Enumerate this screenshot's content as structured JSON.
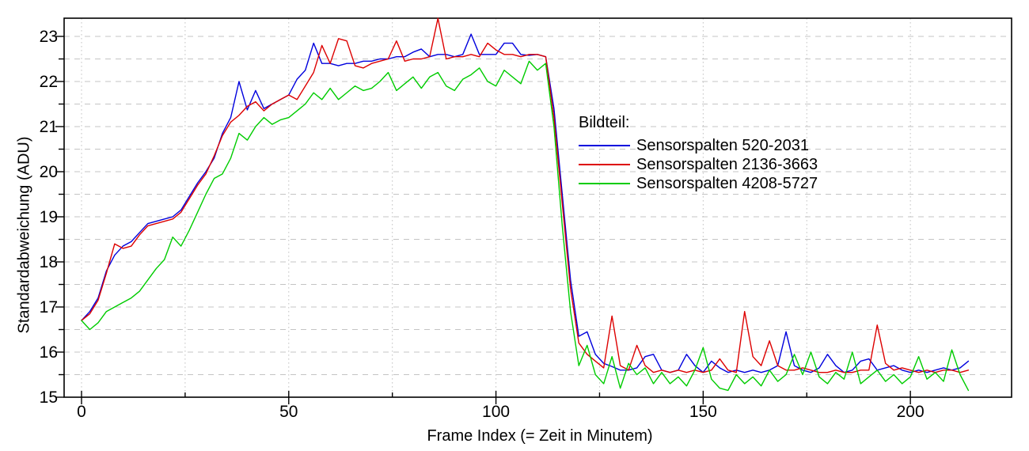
{
  "chart_data": {
    "type": "line",
    "title": "",
    "xlabel": "Frame Index (= Zeit in Minutem)",
    "ylabel": "Standardabweichung (ADU)",
    "legend": {
      "title": "Bildteil:",
      "position": "inside-right"
    },
    "grid": {
      "visible": true,
      "color": "#c4c4c4",
      "h_style": "dashed",
      "v_style": "dotted"
    },
    "x_axis": {
      "ticks_major": [
        0,
        50,
        100,
        150,
        200
      ],
      "ticks_minor": [
        25,
        75,
        125,
        175
      ],
      "gridlines": [
        0,
        25,
        50,
        75,
        100,
        125,
        150,
        175,
        200
      ],
      "range": [
        -4.2,
        224.6
      ]
    },
    "y_axis": {
      "ticks_major": [
        15,
        16,
        17,
        18,
        19,
        20,
        21,
        22,
        23
      ],
      "ticks_minor": [
        15.5,
        16.5,
        17.5,
        18.5,
        19.5,
        20.5,
        21.5,
        22.5
      ],
      "range": [
        15,
        23.4
      ]
    },
    "x_start": 0,
    "x_step": 2,
    "series": [
      {
        "name": "Sensorspalten 520-2031",
        "color": "#0000dd",
        "values": [
          16.7,
          16.9,
          17.2,
          17.8,
          18.15,
          18.35,
          18.45,
          18.65,
          18.85,
          18.9,
          18.95,
          19.0,
          19.15,
          19.45,
          19.75,
          20.0,
          20.3,
          20.85,
          21.2,
          22.0,
          21.37,
          21.8,
          21.4,
          21.5,
          21.6,
          21.7,
          22.05,
          22.25,
          22.85,
          22.4,
          22.4,
          22.35,
          22.4,
          22.4,
          22.45,
          22.45,
          22.5,
          22.5,
          22.55,
          22.55,
          22.65,
          22.72,
          22.55,
          22.6,
          22.6,
          22.55,
          22.6,
          23.05,
          22.6,
          22.6,
          22.6,
          22.85,
          22.85,
          22.6,
          22.58,
          22.6,
          22.55,
          21.4,
          19.5,
          17.6,
          16.35,
          16.45,
          15.95,
          15.75,
          15.68,
          15.6,
          15.6,
          15.65,
          15.9,
          15.95,
          15.6,
          15.55,
          15.6,
          15.95,
          15.7,
          15.55,
          15.8,
          15.65,
          15.55,
          15.6,
          15.55,
          15.6,
          15.55,
          15.6,
          15.7,
          16.45,
          15.7,
          15.6,
          15.55,
          15.65,
          15.95,
          15.7,
          15.55,
          15.6,
          15.8,
          15.85,
          15.6,
          15.65,
          15.7,
          15.6,
          15.55,
          15.6,
          15.55,
          15.6,
          15.65,
          15.6,
          15.65,
          15.8
        ]
      },
      {
        "name": "Sensorspalten 2136-3663",
        "color": "#dd0000",
        "values": [
          16.7,
          16.85,
          17.15,
          17.75,
          18.4,
          18.3,
          18.35,
          18.6,
          18.8,
          18.85,
          18.9,
          18.95,
          19.1,
          19.4,
          19.7,
          19.95,
          20.35,
          20.8,
          21.1,
          21.25,
          21.45,
          21.55,
          21.35,
          21.5,
          21.6,
          21.7,
          21.6,
          21.9,
          22.2,
          22.8,
          22.4,
          22.95,
          22.9,
          22.35,
          22.3,
          22.4,
          22.45,
          22.5,
          22.9,
          22.45,
          22.5,
          22.5,
          22.55,
          23.4,
          22.5,
          22.55,
          22.55,
          22.6,
          22.55,
          22.85,
          22.7,
          22.6,
          22.6,
          22.55,
          22.6,
          22.6,
          22.55,
          21.2,
          19.3,
          17.4,
          16.2,
          15.95,
          15.8,
          15.65,
          16.8,
          15.7,
          15.6,
          16.15,
          15.7,
          15.55,
          15.6,
          15.55,
          15.6,
          15.55,
          15.6,
          15.55,
          15.6,
          15.85,
          15.6,
          15.55,
          16.9,
          15.9,
          15.7,
          16.25,
          15.7,
          15.6,
          15.6,
          15.65,
          15.6,
          15.55,
          15.55,
          15.6,
          15.55,
          15.55,
          15.6,
          15.6,
          16.6,
          15.75,
          15.6,
          15.65,
          15.6,
          15.55,
          15.6,
          15.55,
          15.6,
          15.6,
          15.55,
          15.6
        ]
      },
      {
        "name": "Sensorspalten 4208-5727",
        "color": "#00cc00",
        "values": [
          16.7,
          16.5,
          16.65,
          16.9,
          17.0,
          17.1,
          17.2,
          17.35,
          17.6,
          17.85,
          18.05,
          18.55,
          18.35,
          18.7,
          19.1,
          19.5,
          19.85,
          19.95,
          20.3,
          20.85,
          20.7,
          21.0,
          21.2,
          21.05,
          21.15,
          21.2,
          21.35,
          21.5,
          21.75,
          21.6,
          21.85,
          21.6,
          21.75,
          21.9,
          21.8,
          21.85,
          22.0,
          22.2,
          21.8,
          21.95,
          22.1,
          21.85,
          22.1,
          22.2,
          21.9,
          21.8,
          22.05,
          22.15,
          22.3,
          22.0,
          21.9,
          22.25,
          22.1,
          21.95,
          22.45,
          22.25,
          22.4,
          21.0,
          18.8,
          16.9,
          15.7,
          16.15,
          15.5,
          15.3,
          15.9,
          15.2,
          15.75,
          15.5,
          15.65,
          15.3,
          15.55,
          15.3,
          15.45,
          15.25,
          15.6,
          16.1,
          15.4,
          15.2,
          15.15,
          15.5,
          15.3,
          15.45,
          15.25,
          15.6,
          15.35,
          15.5,
          15.95,
          15.5,
          16.0,
          15.45,
          15.3,
          15.55,
          15.4,
          16.0,
          15.3,
          15.45,
          15.6,
          15.35,
          15.5,
          15.3,
          15.45,
          15.9,
          15.4,
          15.55,
          15.35,
          16.05,
          15.5,
          15.15
        ]
      }
    ]
  }
}
